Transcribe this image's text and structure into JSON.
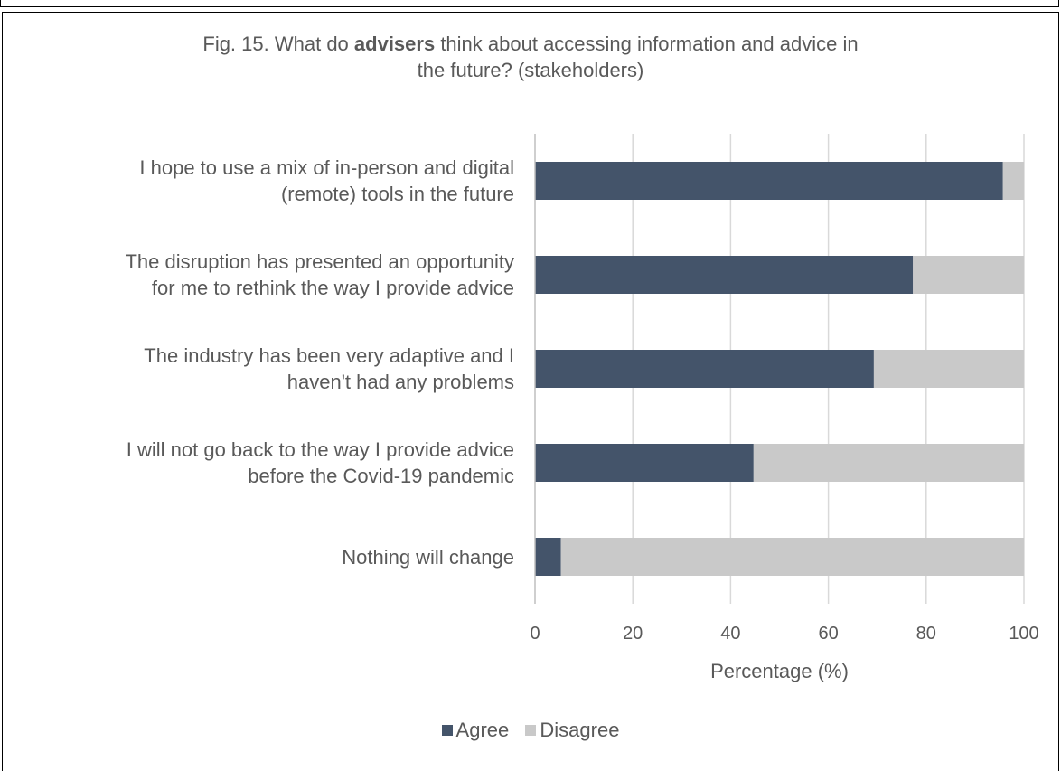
{
  "title": {
    "before": "Fig. 15. What do ",
    "bold": "advisers",
    "after": " think about accessing information and advice in",
    "line2": "the future? (stakeholders)"
  },
  "colors": {
    "agree": "#44546a",
    "disagree": "#c9c9c9",
    "grid": "#d9d9d9",
    "axis": "#bfbfbf"
  },
  "chart_data": {
    "type": "bar",
    "orientation": "horizontal",
    "stacked": true,
    "title": "Fig. 15. What do advisers think about accessing information and advice in the future? (stakeholders)",
    "xlabel": "Percentage (%)",
    "ylabel": "",
    "xlim": [
      0,
      100
    ],
    "xticks": [
      0,
      20,
      40,
      60,
      80,
      100
    ],
    "grid": true,
    "legend_position": "bottom",
    "categories": [
      [
        "I hope to use a mix of in-person and digital",
        "(remote) tools in the future"
      ],
      [
        "The disruption has presented an opportunity",
        "for me to rethink the way I provide advice"
      ],
      [
        "The industry has been very adaptive and I",
        "haven't had any problems"
      ],
      [
        "I will not go back to the way I provide advice",
        "before the Covid-19 pandemic"
      ],
      [
        "Nothing will change"
      ]
    ],
    "series": [
      {
        "name": "Agree",
        "values": [
          95.7,
          77.3,
          69.3,
          44.7,
          5.3
        ]
      },
      {
        "name": "Disagree",
        "values": [
          4.3,
          22.7,
          30.7,
          55.3,
          94.7
        ]
      }
    ]
  }
}
